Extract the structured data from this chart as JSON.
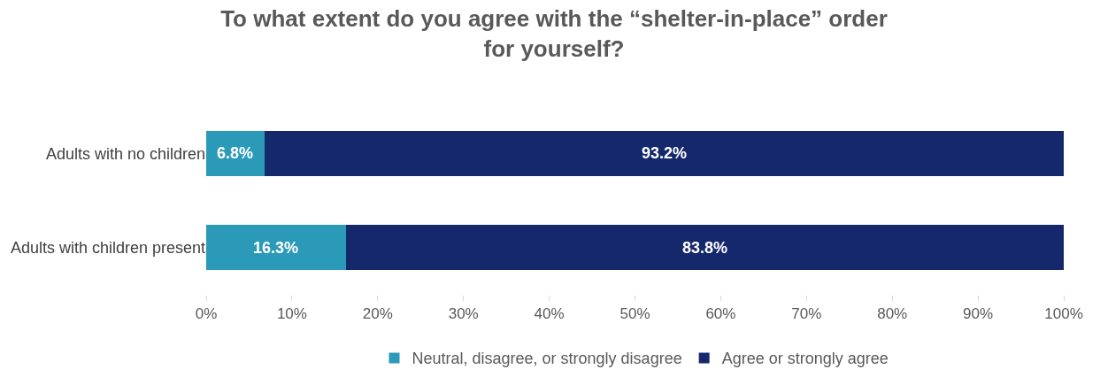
{
  "chart_data": {
    "type": "bar",
    "orientation": "horizontal",
    "stacked": true,
    "title": "To what extent do you agree with the “shelter-in-place” order\nfor yourself?",
    "categories": [
      "Adults with no children",
      "Adults with children present"
    ],
    "series": [
      {
        "name": "Neutral, disagree, or strongly disagree",
        "color": "#2b9ab8",
        "values": [
          6.8,
          16.3
        ],
        "value_labels": [
          "6.8%",
          "16.3%"
        ]
      },
      {
        "name": "Agree or strongly agree",
        "color": "#14286b",
        "values": [
          93.2,
          83.8
        ],
        "value_labels": [
          "93.2%",
          "83.8%"
        ]
      }
    ],
    "xlim": [
      0,
      100
    ],
    "xticks": [
      {
        "value": 0,
        "label": "0%"
      },
      {
        "value": 10,
        "label": "10%"
      },
      {
        "value": 20,
        "label": "20%"
      },
      {
        "value": 30,
        "label": "30%"
      },
      {
        "value": 40,
        "label": "40%"
      },
      {
        "value": 50,
        "label": "50%"
      },
      {
        "value": 60,
        "label": "60%"
      },
      {
        "value": 70,
        "label": "70%"
      },
      {
        "value": 80,
        "label": "80%"
      },
      {
        "value": 90,
        "label": "90%"
      },
      {
        "value": 100,
        "label": "100%"
      }
    ],
    "legend": "bottom"
  }
}
